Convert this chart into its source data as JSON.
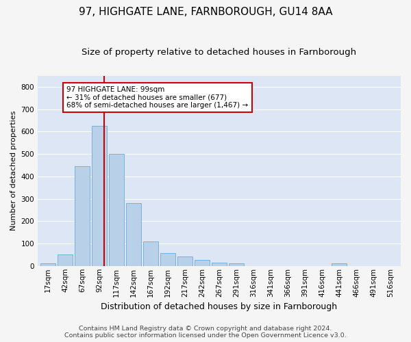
{
  "title": "97, HIGHGATE LANE, FARNBOROUGH, GU14 8AA",
  "subtitle": "Size of property relative to detached houses in Farnborough",
  "xlabel": "Distribution of detached houses by size in Farnborough",
  "ylabel": "Number of detached properties",
  "footer1": "Contains HM Land Registry data © Crown copyright and database right 2024.",
  "footer2": "Contains public sector information licensed under the Open Government Licence v3.0.",
  "categories": [
    "17sqm",
    "42sqm",
    "67sqm",
    "92sqm",
    "117sqm",
    "142sqm",
    "167sqm",
    "192sqm",
    "217sqm",
    "242sqm",
    "267sqm",
    "291sqm",
    "316sqm",
    "341sqm",
    "366sqm",
    "391sqm",
    "416sqm",
    "441sqm",
    "466sqm",
    "491sqm",
    "516sqm"
  ],
  "bar_values": [
    10,
    50,
    445,
    625,
    500,
    280,
    110,
    58,
    42,
    28,
    15,
    10,
    0,
    0,
    0,
    0,
    0,
    10,
    0,
    0,
    0
  ],
  "bar_color": "#b8d0e8",
  "bar_edge_color": "#7aafd4",
  "background_color": "#dce6f5",
  "grid_color": "#ffffff",
  "red_line_color": "#cc0000",
  "annotation_text": "97 HIGHGATE LANE: 99sqm\n← 31% of detached houses are smaller (677)\n68% of semi-detached houses are larger (1,467) →",
  "annotation_box_color": "#cc0000",
  "ylim": [
    0,
    850
  ],
  "yticks": [
    0,
    100,
    200,
    300,
    400,
    500,
    600,
    700,
    800
  ],
  "title_fontsize": 11,
  "subtitle_fontsize": 9.5,
  "xlabel_fontsize": 9,
  "ylabel_fontsize": 8,
  "tick_fontsize": 7.5,
  "footer_fontsize": 6.8,
  "fig_width": 6.0,
  "fig_height": 5.0,
  "fig_dpi": 100
}
